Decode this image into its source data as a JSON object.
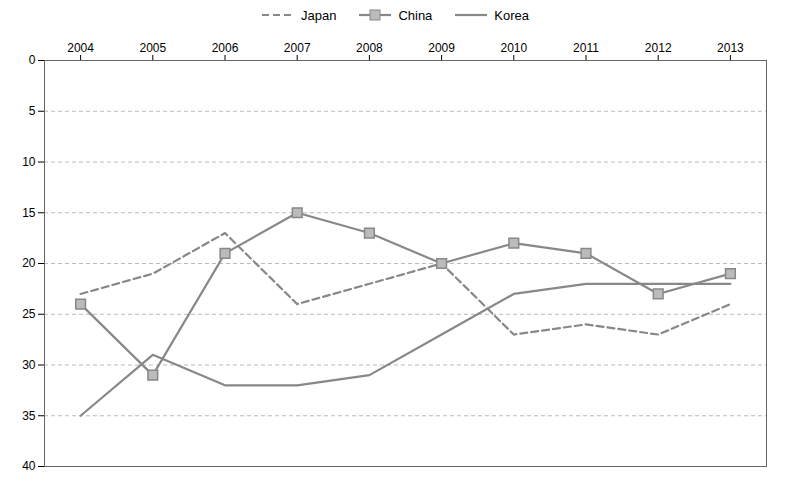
{
  "chart_data": {
    "type": "line",
    "x": [
      2004,
      2005,
      2006,
      2007,
      2008,
      2009,
      2010,
      2011,
      2012,
      2013
    ],
    "xlim": [
      2003.5,
      2013.5
    ],
    "xticks": [
      2004,
      2005,
      2006,
      2007,
      2008,
      2009,
      2010,
      2011,
      2012,
      2013
    ],
    "ylim": [
      40,
      0
    ],
    "yticks": [
      0,
      5,
      10,
      15,
      20,
      25,
      30,
      35,
      40
    ],
    "grid": true,
    "legend": "top",
    "series": [
      {
        "name": "Japan",
        "color": "#888888",
        "line_style": "dashed",
        "marker": "none",
        "values": [
          23,
          21,
          17,
          24,
          22,
          20,
          27,
          26,
          27,
          24
        ]
      },
      {
        "name": "China",
        "color": "#888888",
        "line_style": "solid",
        "marker": "square",
        "values": [
          24,
          31,
          19,
          15,
          17,
          20,
          18,
          19,
          23,
          21
        ]
      },
      {
        "name": "Korea",
        "color": "#888888",
        "line_style": "solid",
        "marker": "none",
        "values": [
          35,
          29,
          32,
          32,
          31,
          27,
          23,
          22,
          22,
          22
        ]
      }
    ]
  }
}
